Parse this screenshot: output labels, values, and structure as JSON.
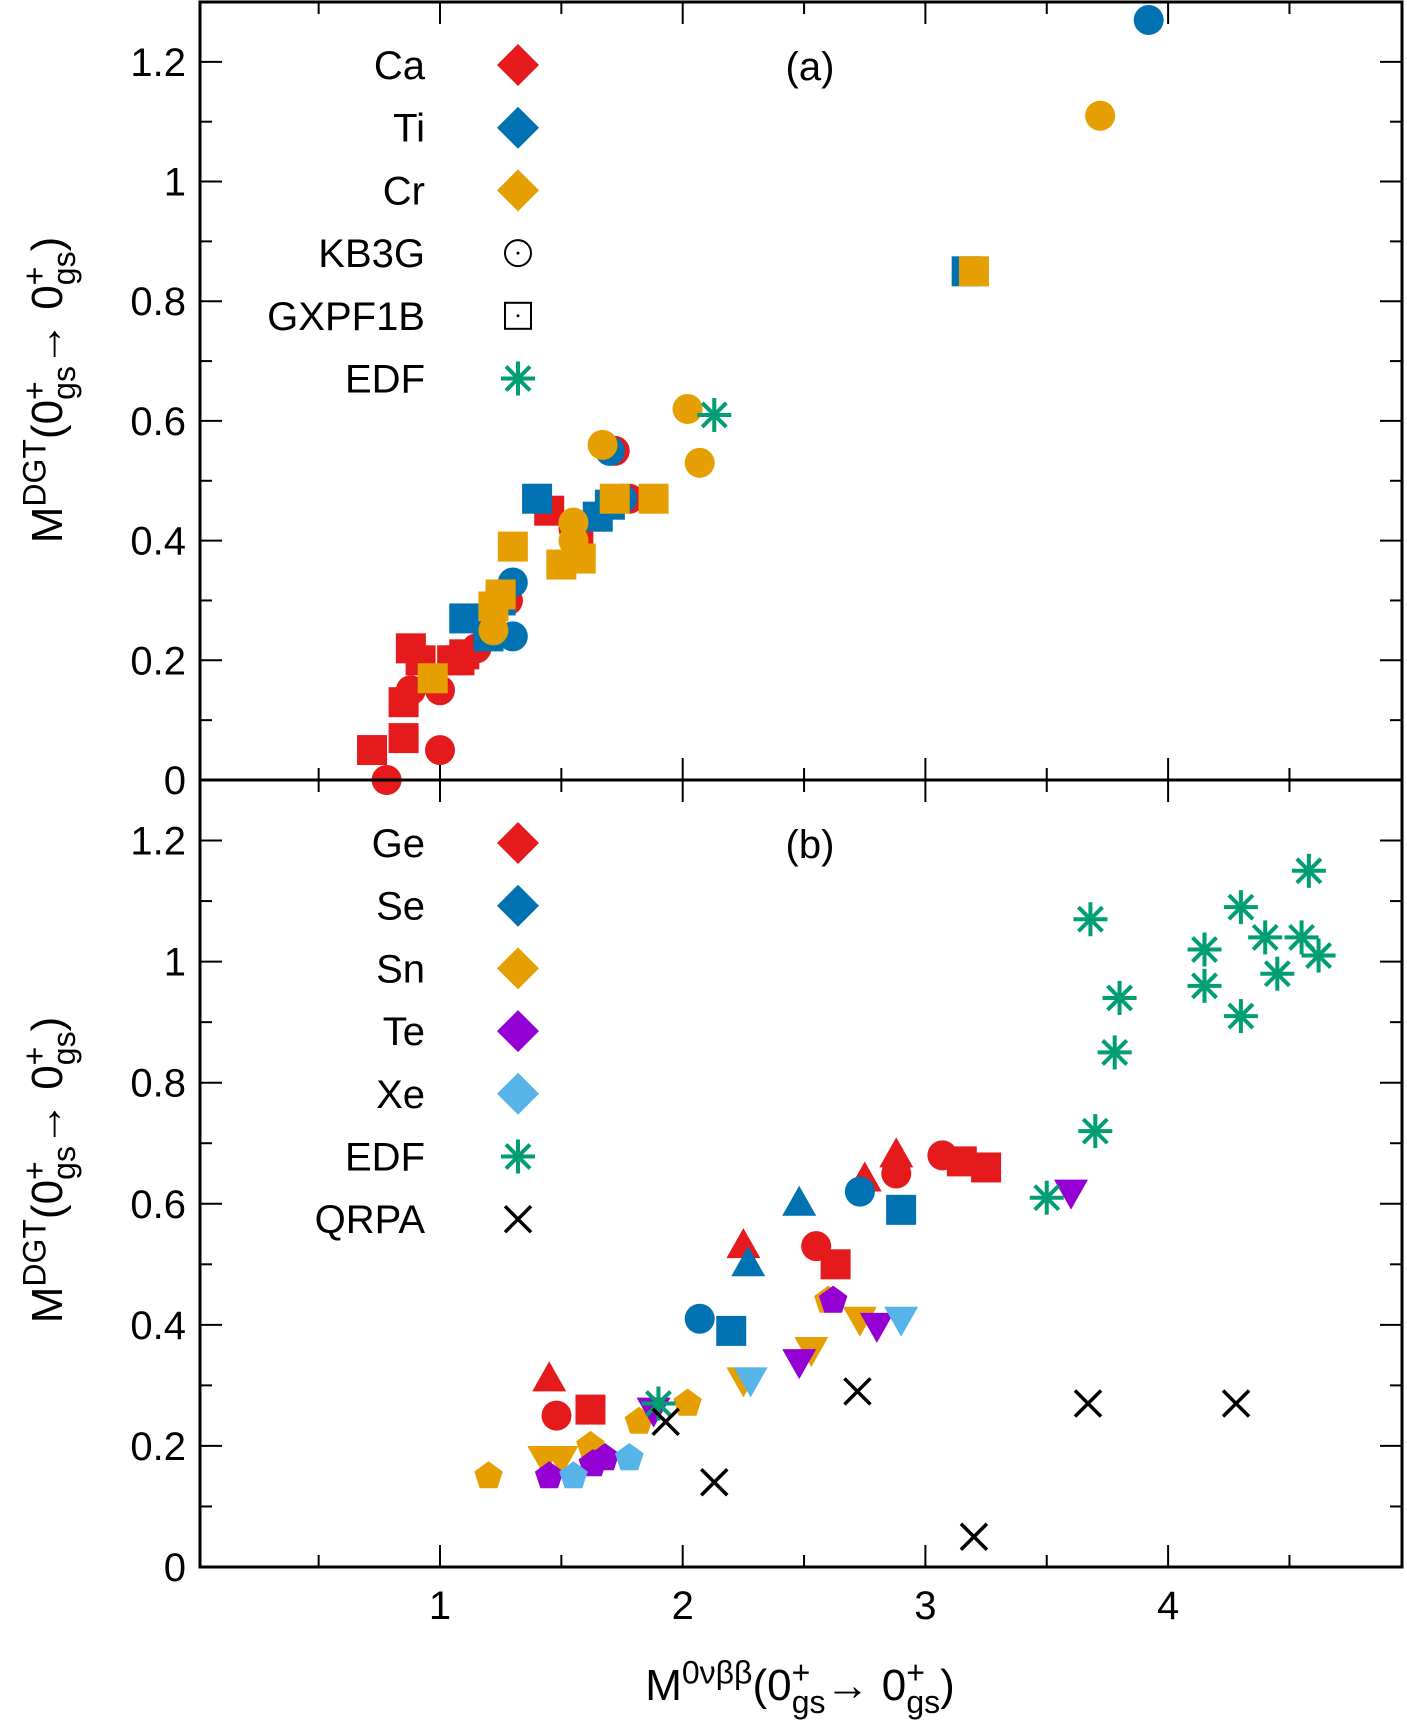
{
  "chart_data": [
    {
      "type": "scatter",
      "panel_label": "(a)",
      "ylabel": "M^{DGT}(0^{+}_{gs}→ 0^{+}_{gs})",
      "ylim": [
        0,
        1.3
      ],
      "xlim": [
        0,
        5
      ],
      "yticks": [
        "0",
        "0.2",
        "0.4",
        "0.6",
        "0.8",
        "1",
        "1.2"
      ],
      "legend": [
        {
          "name": "Ca",
          "shape": "diamond",
          "color": "#e41a1c"
        },
        {
          "name": "Ti",
          "shape": "diamond",
          "color": "#0072b2"
        },
        {
          "name": "Cr",
          "shape": "diamond",
          "color": "#e69f00"
        },
        {
          "name": "KB3G",
          "shape": "circle-open",
          "color": "#000000"
        },
        {
          "name": "GXPF1B",
          "shape": "square-open",
          "color": "#000000"
        },
        {
          "name": "EDF",
          "shape": "asterisk",
          "color": "#009e73"
        }
      ],
      "series": [
        {
          "name": "Ca",
          "color": "#e41a1c",
          "marker": "circle",
          "points": [
            [
              0.78,
              0.0
            ],
            [
              1.0,
              0.05
            ],
            [
              0.88,
              0.15
            ],
            [
              1.0,
              0.15
            ],
            [
              1.15,
              0.22
            ],
            [
              1.28,
              0.3
            ],
            [
              1.55,
              0.42
            ],
            [
              1.72,
              0.55
            ],
            [
              1.78,
              0.47
            ]
          ]
        },
        {
          "name": "Ca",
          "color": "#e41a1c",
          "marker": "square",
          "points": [
            [
              0.72,
              0.05
            ],
            [
              0.85,
              0.07
            ],
            [
              0.85,
              0.13
            ],
            [
              0.92,
              0.2
            ],
            [
              0.88,
              0.22
            ],
            [
              1.05,
              0.2
            ],
            [
              1.08,
              0.2
            ],
            [
              1.1,
              0.21
            ],
            [
              1.45,
              0.45
            ],
            [
              1.57,
              0.42
            ]
          ]
        },
        {
          "name": "Ti",
          "color": "#0072b2",
          "marker": "circle",
          "points": [
            [
              1.3,
              0.24
            ],
            [
              1.3,
              0.33
            ],
            [
              1.2,
              0.27
            ],
            [
              1.7,
              0.55
            ],
            [
              1.75,
              0.47
            ],
            [
              3.92,
              1.27
            ]
          ]
        },
        {
          "name": "Ti",
          "color": "#0072b2",
          "marker": "square",
          "points": [
            [
              1.1,
              0.27
            ],
            [
              1.2,
              0.24
            ],
            [
              1.25,
              0.3
            ],
            [
              1.4,
              0.47
            ],
            [
              1.65,
              0.44
            ],
            [
              1.7,
              0.46
            ],
            [
              3.17,
              0.85
            ]
          ]
        },
        {
          "name": "Cr",
          "color": "#e69f00",
          "marker": "circle",
          "points": [
            [
              1.22,
              0.25
            ],
            [
              1.55,
              0.43
            ],
            [
              1.55,
              0.4
            ],
            [
              1.67,
              0.56
            ],
            [
              2.02,
              0.62
            ],
            [
              2.07,
              0.53
            ],
            [
              3.72,
              1.11
            ]
          ]
        },
        {
          "name": "Cr",
          "color": "#e69f00",
          "marker": "square",
          "points": [
            [
              0.97,
              0.17
            ],
            [
              1.22,
              0.29
            ],
            [
              1.25,
              0.31
            ],
            [
              1.3,
              0.39
            ],
            [
              1.5,
              0.36
            ],
            [
              1.58,
              0.37
            ],
            [
              1.72,
              0.47
            ],
            [
              1.88,
              0.47
            ],
            [
              3.2,
              0.85
            ]
          ]
        },
        {
          "name": "EDF",
          "color": "#009e73",
          "marker": "asterisk",
          "points": [
            [
              2.13,
              0.61
            ]
          ]
        }
      ]
    },
    {
      "type": "scatter",
      "panel_label": "(b)",
      "ylabel": "M^{DGT}(0^{+}_{gs}→ 0^{+}_{gs})",
      "xlabel": "M^{0νββ}(0^{+}_{gs}→ 0^{+}_{gs})",
      "ylim": [
        0,
        1.3
      ],
      "xlim": [
        0,
        5
      ],
      "xticks": [
        "1",
        "2",
        "3",
        "4"
      ],
      "yticks": [
        "0",
        "0.2",
        "0.4",
        "0.6",
        "0.8",
        "1",
        "1.2"
      ],
      "legend": [
        {
          "name": "Ge",
          "shape": "diamond",
          "color": "#e41a1c"
        },
        {
          "name": "Se",
          "shape": "diamond",
          "color": "#0072b2"
        },
        {
          "name": "Sn",
          "shape": "diamond",
          "color": "#e69f00"
        },
        {
          "name": "Te",
          "shape": "diamond",
          "color": "#9400d3"
        },
        {
          "name": "Xe",
          "shape": "diamond",
          "color": "#56b4e9"
        },
        {
          "name": "EDF",
          "shape": "asterisk",
          "color": "#009e73"
        },
        {
          "name": "QRPA",
          "shape": "cross",
          "color": "#000000"
        }
      ],
      "series": [
        {
          "name": "Ge",
          "color": "#e41a1c",
          "marker": "triangle-up",
          "points": [
            [
              1.45,
              0.31
            ],
            [
              2.25,
              0.53
            ],
            [
              2.75,
              0.64
            ],
            [
              2.88,
              0.68
            ]
          ]
        },
        {
          "name": "Ge",
          "color": "#e41a1c",
          "marker": "circle",
          "points": [
            [
              1.48,
              0.25
            ],
            [
              2.55,
              0.53
            ],
            [
              2.88,
              0.65
            ],
            [
              3.07,
              0.68
            ]
          ]
        },
        {
          "name": "Ge",
          "color": "#e41a1c",
          "marker": "square",
          "points": [
            [
              1.62,
              0.26
            ],
            [
              2.63,
              0.5
            ],
            [
              3.15,
              0.67
            ],
            [
              3.25,
              0.66
            ]
          ]
        },
        {
          "name": "Se",
          "color": "#0072b2",
          "marker": "triangle-up",
          "points": [
            [
              2.27,
              0.5
            ],
            [
              2.48,
              0.6
            ]
          ]
        },
        {
          "name": "Se",
          "color": "#0072b2",
          "marker": "circle",
          "points": [
            [
              2.07,
              0.41
            ],
            [
              2.73,
              0.62
            ]
          ]
        },
        {
          "name": "Se",
          "color": "#0072b2",
          "marker": "square",
          "points": [
            [
              2.2,
              0.39
            ],
            [
              2.9,
              0.59
            ]
          ]
        },
        {
          "name": "Sn",
          "color": "#e69f00",
          "marker": "pentagon",
          "points": [
            [
              1.2,
              0.15
            ],
            [
              1.62,
              0.2
            ],
            [
              1.82,
              0.24
            ],
            [
              2.02,
              0.27
            ],
            [
              2.6,
              0.44
            ]
          ]
        },
        {
          "name": "Sn",
          "color": "#e69f00",
          "marker": "triangle-down",
          "points": [
            [
              1.43,
              0.18
            ],
            [
              1.5,
              0.18
            ],
            [
              2.25,
              0.31
            ],
            [
              2.53,
              0.36
            ],
            [
              2.73,
              0.41
            ]
          ]
        },
        {
          "name": "Te",
          "color": "#9400d3",
          "marker": "pentagon",
          "points": [
            [
              1.45,
              0.15
            ],
            [
              1.63,
              0.17
            ],
            [
              1.68,
              0.18
            ],
            [
              2.62,
              0.44
            ]
          ]
        },
        {
          "name": "Te",
          "color": "#9400d3",
          "marker": "triangle-down",
          "points": [
            [
              1.88,
              0.26
            ],
            [
              2.48,
              0.34
            ],
            [
              2.8,
              0.4
            ],
            [
              3.6,
              0.62
            ]
          ]
        },
        {
          "name": "Xe",
          "color": "#56b4e9",
          "marker": "pentagon",
          "points": [
            [
              1.55,
              0.15
            ],
            [
              1.78,
              0.18
            ]
          ]
        },
        {
          "name": "Xe",
          "color": "#56b4e9",
          "marker": "triangle-down",
          "points": [
            [
              2.28,
              0.31
            ],
            [
              2.9,
              0.41
            ]
          ]
        },
        {
          "name": "EDF",
          "color": "#009e73",
          "marker": "asterisk",
          "points": [
            [
              1.9,
              0.27
            ],
            [
              3.5,
              0.61
            ],
            [
              3.7,
              0.72
            ],
            [
              3.78,
              0.85
            ],
            [
              3.8,
              0.94
            ],
            [
              3.68,
              1.07
            ],
            [
              4.15,
              0.96
            ],
            [
              4.15,
              1.02
            ],
            [
              4.3,
              0.91
            ],
            [
              4.3,
              1.09
            ],
            [
              4.4,
              1.04
            ],
            [
              4.45,
              0.98
            ],
            [
              4.55,
              1.04
            ],
            [
              4.58,
              1.15
            ],
            [
              4.62,
              1.01
            ]
          ]
        },
        {
          "name": "QRPA",
          "color": "#000000",
          "marker": "cross",
          "points": [
            [
              1.93,
              0.24
            ],
            [
              2.13,
              0.14
            ],
            [
              2.72,
              0.29
            ],
            [
              3.2,
              0.05
            ],
            [
              3.67,
              0.27
            ],
            [
              4.28,
              0.27
            ]
          ]
        }
      ]
    }
  ]
}
